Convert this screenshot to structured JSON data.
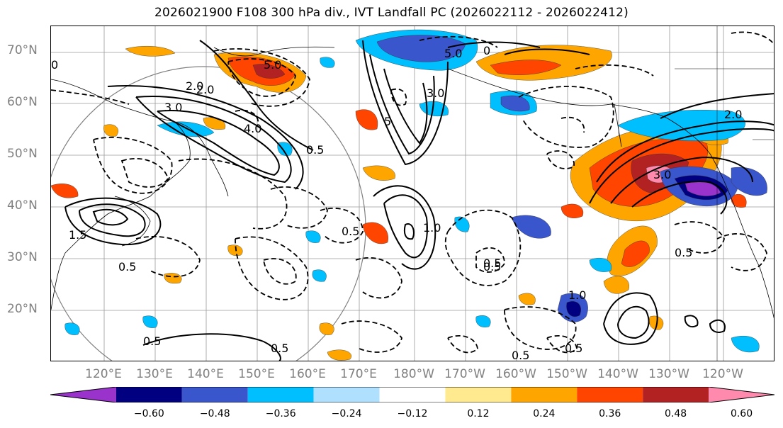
{
  "title": "2026021900 F108 300 hPa div., IVT Landfall PC (2026022112 - 2026022412)",
  "lat_labels": [
    "70°N",
    "60°N",
    "50°N",
    "40°N",
    "30°N",
    "20°N"
  ],
  "lon_labels": [
    "120°E",
    "130°E",
    "140°E",
    "150°E",
    "160°E",
    "170°E",
    "180°W",
    "170°W",
    "160°W",
    "150°W",
    "140°W",
    "130°W",
    "120°W"
  ],
  "contour_labels": [
    "5.0",
    "5.0",
    "0",
    "3.0",
    "2.0",
    "4.0",
    "0.5",
    "1.0",
    "0.5",
    "1.5",
    "2.0",
    "0.5",
    "0.5",
    "3.0",
    "5",
    "1.0",
    "0.5",
    "0.5",
    "0.5",
    "0.5",
    "0.5",
    "2.0",
    "3.0",
    "0",
    "0.5"
  ],
  "colorbar": {
    "colors": [
      "#9933cc",
      "#000080",
      "#3a56cc",
      "#00bfff",
      "#afe1ff",
      "#ffffff",
      "#ffea90",
      "#ffa500",
      "#ff4500",
      "#b22222",
      "#ff8aae"
    ],
    "tick_labels": [
      "−0.60",
      "−0.48",
      "−0.36",
      "−0.24",
      "−0.12",
      "0.12",
      "0.24",
      "0.36",
      "0.48",
      "0.60"
    ]
  }
}
